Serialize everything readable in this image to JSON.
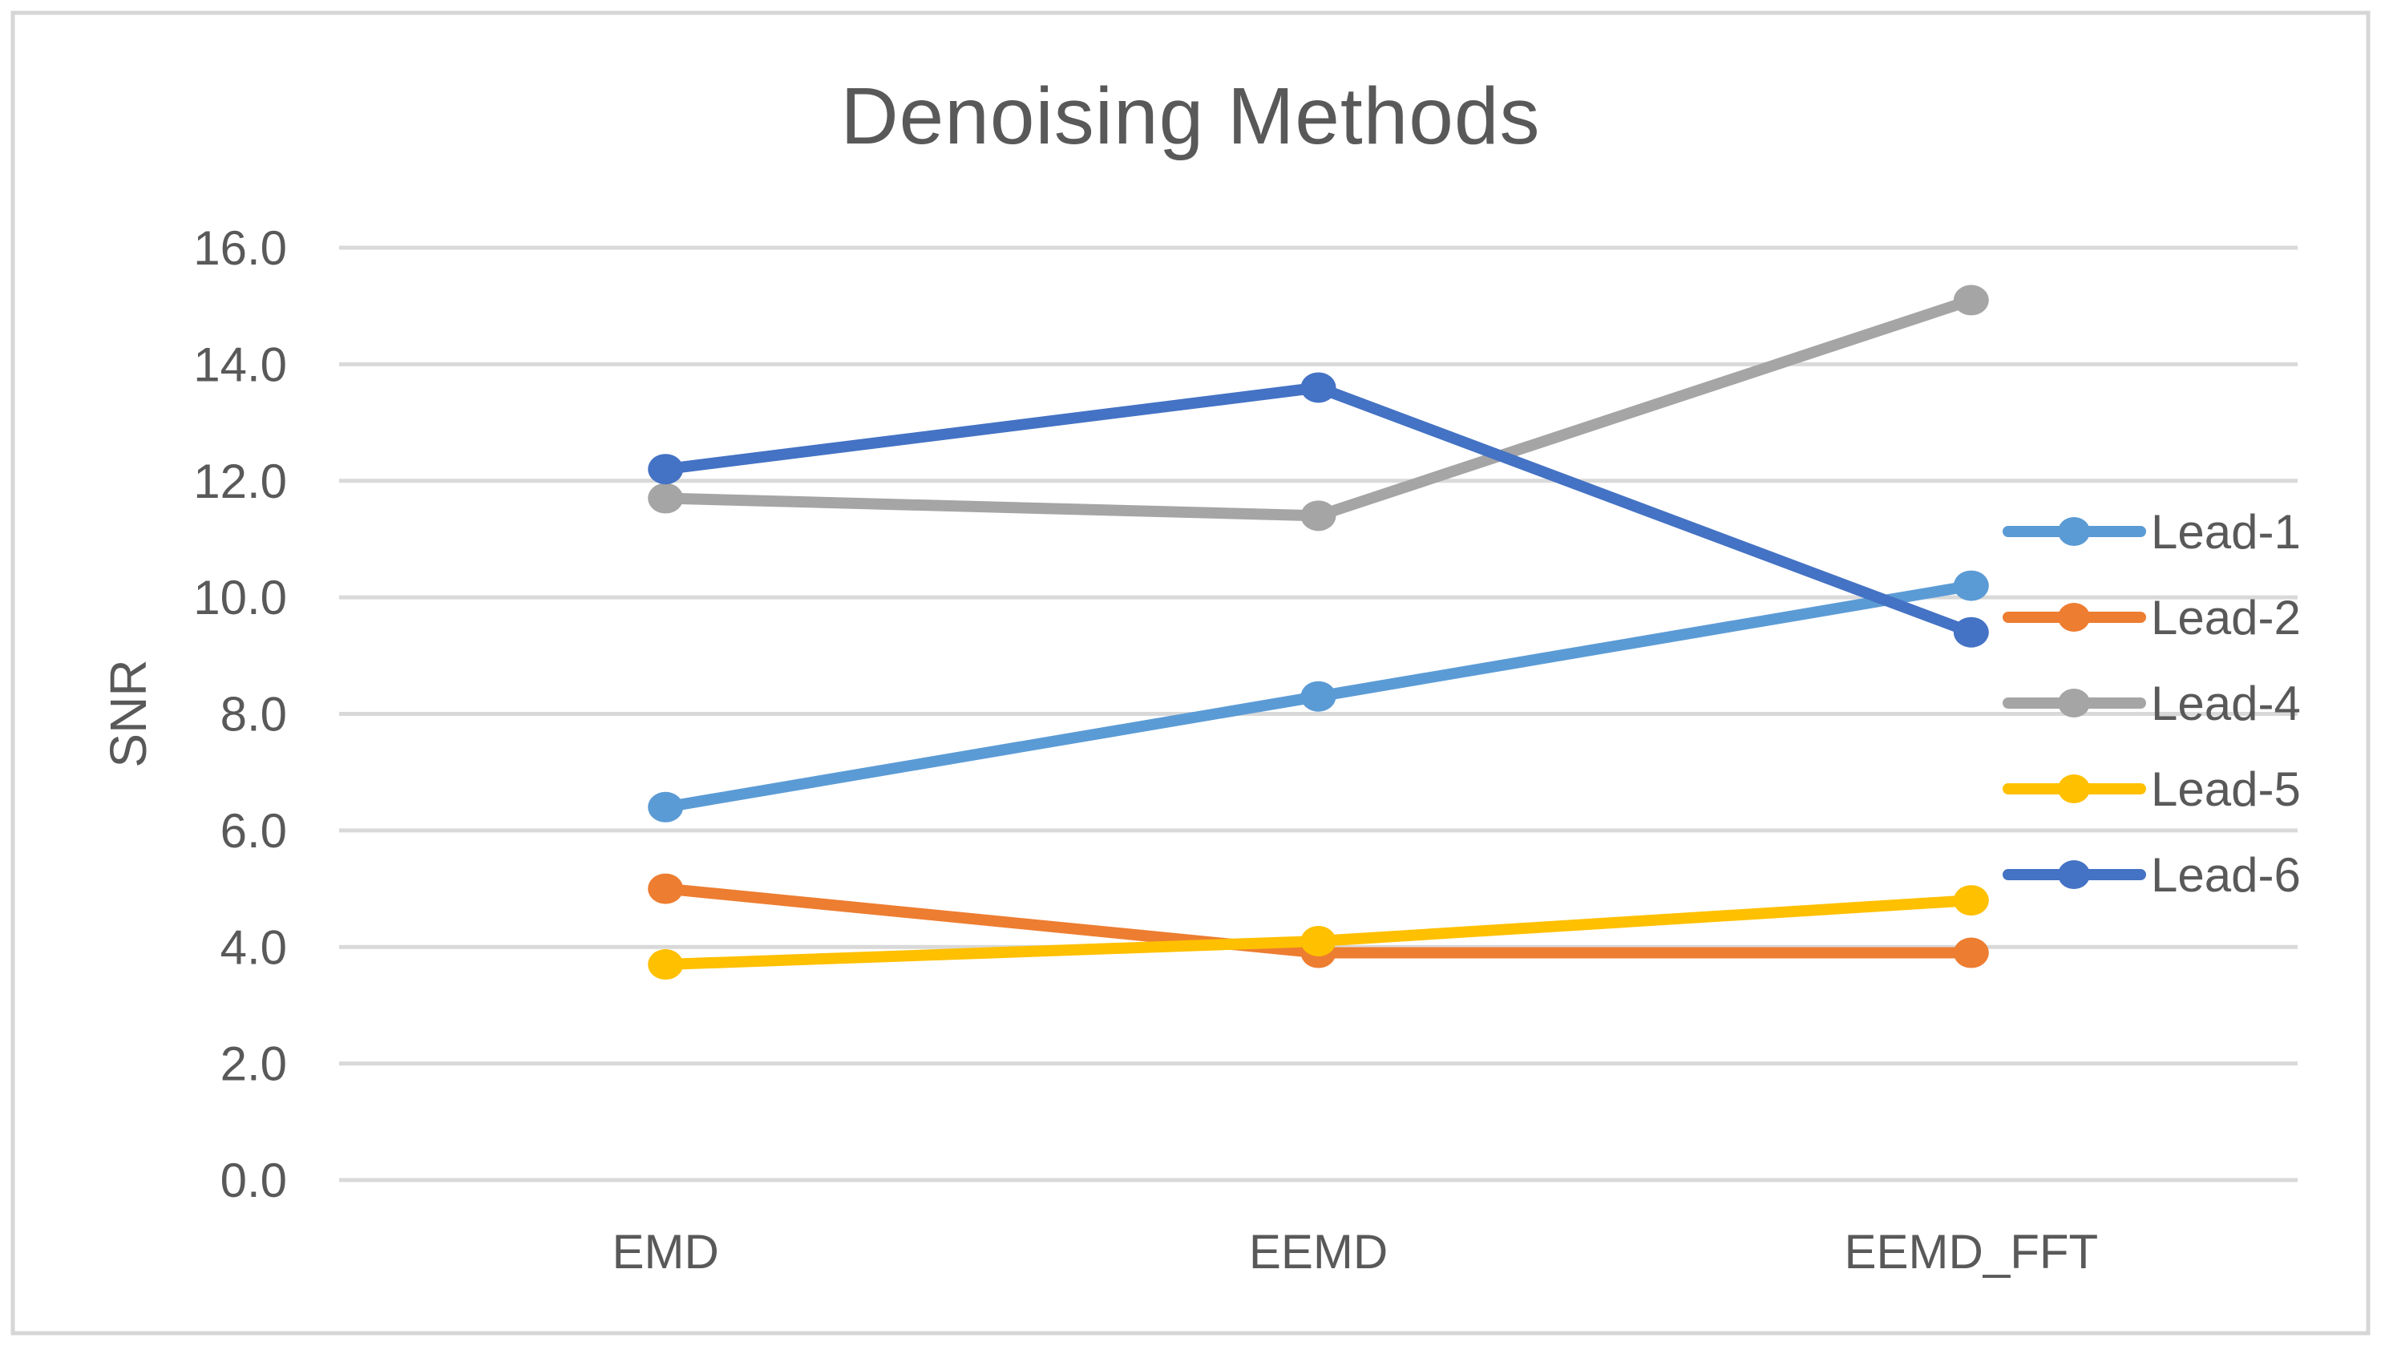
{
  "chart_data": {
    "type": "line",
    "title": "Denoising Methods",
    "xlabel": "",
    "ylabel": "SNR",
    "categories": [
      "EMD",
      "EEMD",
      "EEMD_FFT"
    ],
    "series": [
      {
        "name": "Lead-1",
        "color": "#5B9BD5",
        "values": [
          6.4,
          8.3,
          10.2
        ]
      },
      {
        "name": "Lead-2",
        "color": "#ED7D31",
        "values": [
          5.0,
          3.9,
          3.9
        ]
      },
      {
        "name": "Lead-4",
        "color": "#A5A5A5",
        "values": [
          11.7,
          11.4,
          15.1
        ]
      },
      {
        "name": "Lead-5",
        "color": "#FFC000",
        "values": [
          3.7,
          4.1,
          4.8
        ]
      },
      {
        "name": "Lead-6",
        "color": "#4472C4",
        "values": [
          12.2,
          13.6,
          9.4
        ]
      }
    ],
    "ylim": [
      0,
      16
    ],
    "ytick_step": 2,
    "ytick_format_decimals": 1,
    "grid": true,
    "legend_position": "right",
    "legend_labels": [
      "Lead-1",
      "Lead-2",
      "Lead-4",
      "Lead-5",
      "Lead-6"
    ],
    "colors": {
      "grid": "#D9D9D9",
      "frame_border": "#D6D6D6",
      "text": "#595959",
      "background": "#FFFFFF"
    }
  }
}
